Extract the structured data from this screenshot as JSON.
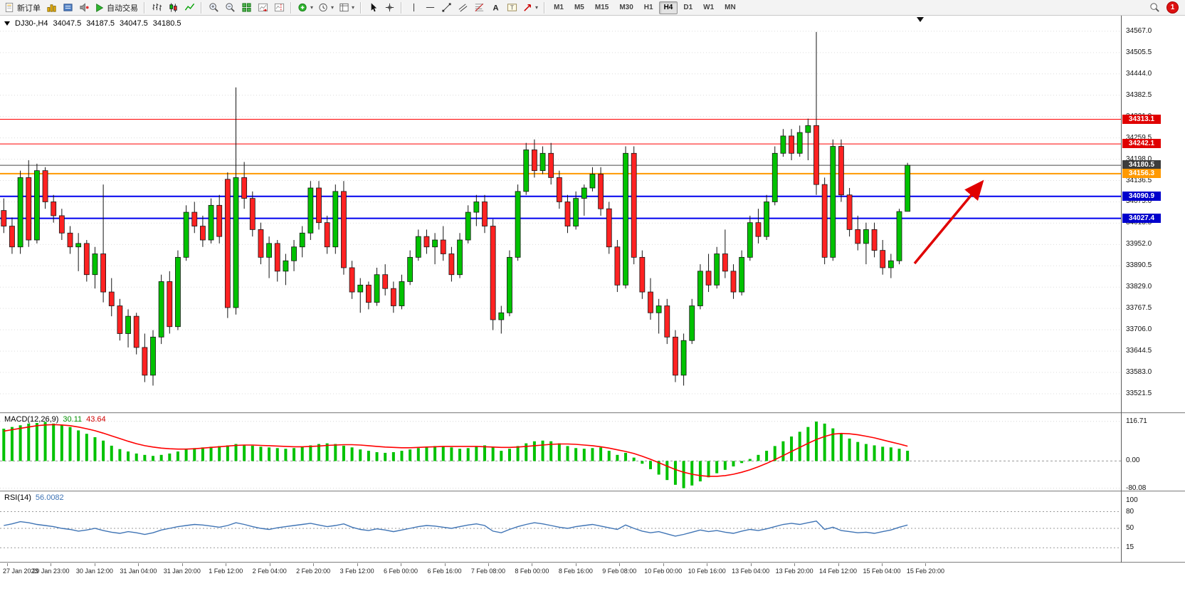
{
  "toolbar": {
    "new_order_label": "新订单",
    "autotrading_label": "自动交易",
    "timeframes": [
      "M1",
      "M5",
      "M15",
      "M30",
      "H1",
      "H4",
      "D1",
      "W1",
      "MN"
    ],
    "active_timeframe": "H4",
    "notification_count": "1",
    "icon_names": [
      "new-order-icon",
      "new-chart-icon",
      "profiles-icon",
      "alerts-icon",
      "autotrading-icon",
      "bar-chart-icon",
      "candlestick-chart-icon",
      "line-chart-icon",
      "zoom-in-icon",
      "zoom-out-icon",
      "tile-windows-icon",
      "auto-scroll-icon",
      "chart-shift-icon",
      "add-indicator-icon",
      "periods-icon",
      "templates-icon",
      "cursor-icon",
      "crosshair-icon",
      "vertical-line-icon",
      "horizontal-line-icon",
      "trendline-icon",
      "equidistant-channel-icon",
      "fibonacci-icon",
      "text-icon",
      "text-label-icon",
      "arrow-tool-icon",
      "search-icon",
      "notification-badge"
    ]
  },
  "chart_data": {
    "type": "candlestick",
    "title": "DJ30-,H4",
    "symbol": "DJ30-",
    "timeframe": "H4",
    "ohlc_display": {
      "open": "34047.5",
      "high": "34187.5",
      "low": "34047.5",
      "close": "34180.5"
    },
    "y_range": {
      "top": 34612,
      "bottom": 33468
    },
    "price_axis_labels": [
      "34567.0",
      "34505.5",
      "34444.0",
      "34382.5",
      "34321.0",
      "34259.5",
      "34198.0",
      "34136.5",
      "34075.0",
      "34013.5",
      "33952.0",
      "33890.5",
      "33829.0",
      "33767.5",
      "33706.0",
      "33644.5",
      "33583.0",
      "33521.5"
    ],
    "time_axis_labels": [
      "27 Jan 2023",
      "29 Jan 23:00",
      "30 Jan 12:00",
      "31 Jan 04:00",
      "31 Jan 20:00",
      "1 Feb 12:00",
      "2 Feb 04:00",
      "2 Feb 20:00",
      "3 Feb 12:00",
      "6 Feb 00:00",
      "6 Feb 16:00",
      "7 Feb 08:00",
      "8 Feb 00:00",
      "8 Feb 16:00",
      "9 Feb 08:00",
      "10 Feb 00:00",
      "10 Feb 16:00",
      "13 Feb 04:00",
      "13 Feb 20:00",
      "14 Feb 12:00",
      "15 Feb 04:00",
      "15 Feb 20:00"
    ],
    "levels": [
      {
        "price": 34313.1,
        "label": "34313.1",
        "line": "#ff0000",
        "badge": "#e00000",
        "width": 1
      },
      {
        "price": 34242.1,
        "label": "34242.1",
        "line": "#ff0000",
        "badge": "#e00000",
        "width": 1
      },
      {
        "price": 34180.5,
        "label": "34180.5",
        "line": "#4a4a4a",
        "badge": "#3c3c3c",
        "width": 1
      },
      {
        "price": 34156.3,
        "label": "34156.3",
        "line": "#ff9900",
        "badge": "#ff9900",
        "width": 2
      },
      {
        "price": 34090.9,
        "label": "34090.9",
        "line": "#0000ee",
        "badge": "#0000cc",
        "width": 2
      },
      {
        "price": 34027.4,
        "label": "34027.4",
        "line": "#0000ee",
        "badge": "#0000cc",
        "width": 2
      }
    ],
    "annotation_arrow": {
      "from": [
        1285,
        348
      ],
      "to": [
        1378,
        236
      ]
    },
    "colors": {
      "up": "#00c200",
      "down": "#ff2222",
      "outline": "#151515",
      "macd_histogram": "#00c200",
      "macd_signal": "#ff0000",
      "rsi_line": "#3f74b5",
      "arrow": "#e00000"
    },
    "candles": [
      [
        34050,
        34085,
        33985,
        34005
      ],
      [
        34005,
        34030,
        33925,
        33945
      ],
      [
        33945,
        34165,
        33925,
        34145
      ],
      [
        34145,
        34195,
        33945,
        33965
      ],
      [
        33965,
        34185,
        33955,
        34165
      ],
      [
        34165,
        34175,
        34055,
        34075
      ],
      [
        34075,
        34095,
        34015,
        34035
      ],
      [
        34035,
        34055,
        33965,
        33985
      ],
      [
        33985,
        34005,
        33925,
        33945
      ],
      [
        33945,
        33985,
        33875,
        33955
      ],
      [
        33955,
        33965,
        33845,
        33865
      ],
      [
        33865,
        33945,
        33825,
        33925
      ],
      [
        33925,
        34125,
        33785,
        33815
      ],
      [
        33815,
        33855,
        33745,
        33775
      ],
      [
        33775,
        33795,
        33675,
        33695
      ],
      [
        33695,
        33765,
        33655,
        33745
      ],
      [
        33745,
        33755,
        33635,
        33655
      ],
      [
        33655,
        33695,
        33555,
        33575
      ],
      [
        33575,
        33705,
        33545,
        33685
      ],
      [
        33685,
        33865,
        33665,
        33845
      ],
      [
        33845,
        33875,
        33695,
        33715
      ],
      [
        33715,
        33935,
        33705,
        33915
      ],
      [
        33915,
        34065,
        33905,
        34045
      ],
      [
        34045,
        34075,
        33985,
        34005
      ],
      [
        34005,
        34035,
        33945,
        33965
      ],
      [
        33965,
        34085,
        33955,
        34065
      ],
      [
        34065,
        34095,
        33955,
        33975
      ],
      [
        34140,
        34160,
        33740,
        33770
      ],
      [
        33770,
        34405,
        33750,
        34145
      ],
      [
        34145,
        34190,
        34055,
        34085
      ],
      [
        34085,
        34105,
        33975,
        33995
      ],
      [
        33995,
        34015,
        33895,
        33915
      ],
      [
        33915,
        33975,
        33855,
        33955
      ],
      [
        33955,
        33965,
        33845,
        33875
      ],
      [
        33875,
        33925,
        33835,
        33905
      ],
      [
        33905,
        33965,
        33875,
        33945
      ],
      [
        33945,
        34005,
        33915,
        33985
      ],
      [
        33985,
        34135,
        33965,
        34115
      ],
      [
        34115,
        34135,
        33995,
        34015
      ],
      [
        34015,
        34035,
        33925,
        33945
      ],
      [
        33945,
        34125,
        33925,
        34105
      ],
      [
        34105,
        34135,
        33865,
        33885
      ],
      [
        33885,
        33905,
        33795,
        33815
      ],
      [
        33815,
        33855,
        33755,
        33835
      ],
      [
        33835,
        33845,
        33765,
        33785
      ],
      [
        33785,
        33885,
        33775,
        33865
      ],
      [
        33865,
        33895,
        33805,
        33825
      ],
      [
        33825,
        33845,
        33755,
        33775
      ],
      [
        33775,
        33865,
        33765,
        33845
      ],
      [
        33845,
        33935,
        33835,
        33915
      ],
      [
        33915,
        33995,
        33905,
        33975
      ],
      [
        33975,
        33995,
        33925,
        33945
      ],
      [
        33945,
        33985,
        33895,
        33965
      ],
      [
        33965,
        34005,
        33905,
        33925
      ],
      [
        33925,
        33945,
        33845,
        33865
      ],
      [
        33865,
        33985,
        33855,
        33965
      ],
      [
        33965,
        34065,
        33955,
        34045
      ],
      [
        34045,
        34095,
        34005,
        34075
      ],
      [
        34075,
        34095,
        33985,
        34005
      ],
      [
        34005,
        34025,
        33705,
        33735
      ],
      [
        33735,
        33775,
        33695,
        33755
      ],
      [
        33755,
        33935,
        33745,
        33915
      ],
      [
        33915,
        34125,
        33905,
        34105
      ],
      [
        34105,
        34245,
        34095,
        34225
      ],
      [
        34225,
        34255,
        34145,
        34165
      ],
      [
        34165,
        34235,
        34155,
        34215
      ],
      [
        34215,
        34245,
        34125,
        34145
      ],
      [
        34145,
        34165,
        34055,
        34075
      ],
      [
        34075,
        34095,
        33985,
        34005
      ],
      [
        34005,
        34105,
        33995,
        34085
      ],
      [
        34085,
        34125,
        34035,
        34115
      ],
      [
        34115,
        34175,
        34105,
        34155
      ],
      [
        34155,
        34175,
        34035,
        34055
      ],
      [
        34055,
        34075,
        33925,
        33945
      ],
      [
        33945,
        33965,
        33815,
        33835
      ],
      [
        33835,
        34235,
        33825,
        34215
      ],
      [
        34215,
        34235,
        33895,
        33915
      ],
      [
        33915,
        33935,
        33795,
        33815
      ],
      [
        33815,
        33855,
        33735,
        33755
      ],
      [
        33755,
        33795,
        33695,
        33775
      ],
      [
        33775,
        33795,
        33665,
        33685
      ],
      [
        33685,
        33705,
        33555,
        33575
      ],
      [
        33575,
        33695,
        33545,
        33675
      ],
      [
        33675,
        33795,
        33665,
        33775
      ],
      [
        33775,
        33895,
        33765,
        33875
      ],
      [
        33875,
        33925,
        33815,
        33835
      ],
      [
        33835,
        33945,
        33825,
        33925
      ],
      [
        33925,
        33995,
        33855,
        33875
      ],
      [
        33875,
        33895,
        33795,
        33815
      ],
      [
        33815,
        33935,
        33805,
        33915
      ],
      [
        33915,
        34035,
        33905,
        34015
      ],
      [
        34015,
        34055,
        33955,
        33975
      ],
      [
        33975,
        34095,
        33965,
        34075
      ],
      [
        34075,
        34235,
        34065,
        34215
      ],
      [
        34215,
        34285,
        34205,
        34265
      ],
      [
        34265,
        34285,
        34195,
        34215
      ],
      [
        34215,
        34295,
        34205,
        34275
      ],
      [
        34275,
        34315,
        34195,
        34295
      ],
      [
        34295,
        34565,
        34095,
        34125
      ],
      [
        34125,
        34145,
        33895,
        33915
      ],
      [
        33915,
        34255,
        33905,
        34235
      ],
      [
        34235,
        34255,
        34075,
        34095
      ],
      [
        34095,
        34115,
        33975,
        33995
      ],
      [
        33995,
        34035,
        33935,
        33955
      ],
      [
        33955,
        34015,
        33895,
        33995
      ],
      [
        33995,
        34015,
        33915,
        33935
      ],
      [
        33935,
        33965,
        33865,
        33885
      ],
      [
        33885,
        33925,
        33855,
        33905
      ],
      [
        33905,
        34055,
        33895,
        34047
      ],
      [
        34047.5,
        34187.5,
        34047.5,
        34180.5
      ]
    ],
    "indicators": {
      "macd": {
        "label": "MACD(12,26,9)",
        "main_value": "30.11",
        "signal_value": "43.64",
        "axis_labels": [
          "116.71",
          "0.00",
          "-80.08"
        ],
        "y_range": {
          "top": 137,
          "bottom": -85
        },
        "histogram": [
          95,
          100,
          105,
          110,
          112,
          115,
          110,
          105,
          100,
          90,
          80,
          70,
          60,
          45,
          35,
          28,
          22,
          18,
          15,
          18,
          22,
          28,
          34,
          38,
          40,
          42,
          44,
          46,
          50,
          48,
          45,
          42,
          40,
          38,
          36,
          38,
          42,
          46,
          50,
          52,
          50,
          45,
          40,
          34,
          30,
          26,
          24,
          26,
          30,
          34,
          38,
          42,
          44,
          42,
          40,
          36,
          38,
          42,
          46,
          40,
          30,
          36,
          44,
          52,
          58,
          60,
          58,
          52,
          44,
          38,
          36,
          38,
          40,
          30,
          18,
          24,
          10,
          -8,
          -24,
          -40,
          -56,
          -70,
          -80,
          -72,
          -60,
          -48,
          -36,
          -26,
          -16,
          -6,
          6,
          18,
          30,
          44,
          58,
          72,
          86,
          100,
          116,
          110,
          96,
          80,
          66,
          56,
          50,
          46,
          42,
          40,
          36,
          30.11
        ],
        "signal": [
          88,
          92,
          96,
          100,
          104,
          106,
          107,
          106,
          104,
          100,
          95,
          89,
          82,
          74,
          66,
          58,
          51,
          45,
          41,
          38,
          36,
          35,
          35,
          36,
          38,
          40,
          42,
          44,
          46,
          47,
          47,
          46,
          45,
          44,
          43,
          42,
          42,
          43,
          44,
          46,
          47,
          48,
          48,
          47,
          45,
          43,
          41,
          40,
          39,
          39,
          40,
          41,
          42,
          43,
          43,
          43,
          43,
          43,
          42,
          41,
          40,
          40,
          41,
          43,
          45,
          47,
          49,
          50,
          50,
          49,
          47,
          45,
          42,
          38,
          33,
          28,
          22,
          14,
          5,
          -5,
          -15,
          -25,
          -33,
          -39,
          -43,
          -45,
          -45,
          -43,
          -39,
          -33,
          -26,
          -17,
          -7,
          4,
          16,
          28,
          40,
          52,
          63,
          72,
          79,
          81,
          80,
          77,
          73,
          68,
          62,
          56,
          50,
          43.64
        ]
      },
      "rsi": {
        "label": "RSI(14)",
        "value": "56.0082",
        "axis_labels": [
          "100",
          "80",
          "50",
          "15"
        ],
        "levels": [
          80,
          50,
          15
        ],
        "y_range": {
          "top": 114,
          "bottom": -9
        },
        "values": [
          55,
          58,
          62,
          60,
          57,
          55,
          53,
          50,
          48,
          45,
          47,
          50,
          46,
          43,
          41,
          44,
          42,
          39,
          42,
          47,
          50,
          53,
          55,
          57,
          56,
          54,
          52,
          55,
          60,
          57,
          53,
          50,
          48,
          51,
          53,
          55,
          57,
          59,
          56,
          53,
          55,
          58,
          52,
          48,
          46,
          49,
          47,
          44,
          47,
          50,
          53,
          55,
          54,
          52,
          50,
          53,
          56,
          58,
          55,
          45,
          42,
          48,
          53,
          57,
          60,
          58,
          55,
          52,
          50,
          53,
          55,
          57,
          54,
          51,
          48,
          56,
          50,
          45,
          42,
          44,
          40,
          36,
          39,
          43,
          47,
          44,
          46,
          43,
          41,
          45,
          48,
          46,
          49,
          53,
          57,
          59,
          57,
          60,
          63,
          48,
          52,
          46,
          44,
          42,
          43,
          41,
          44,
          47,
          52,
          56.0082
        ]
      }
    }
  }
}
